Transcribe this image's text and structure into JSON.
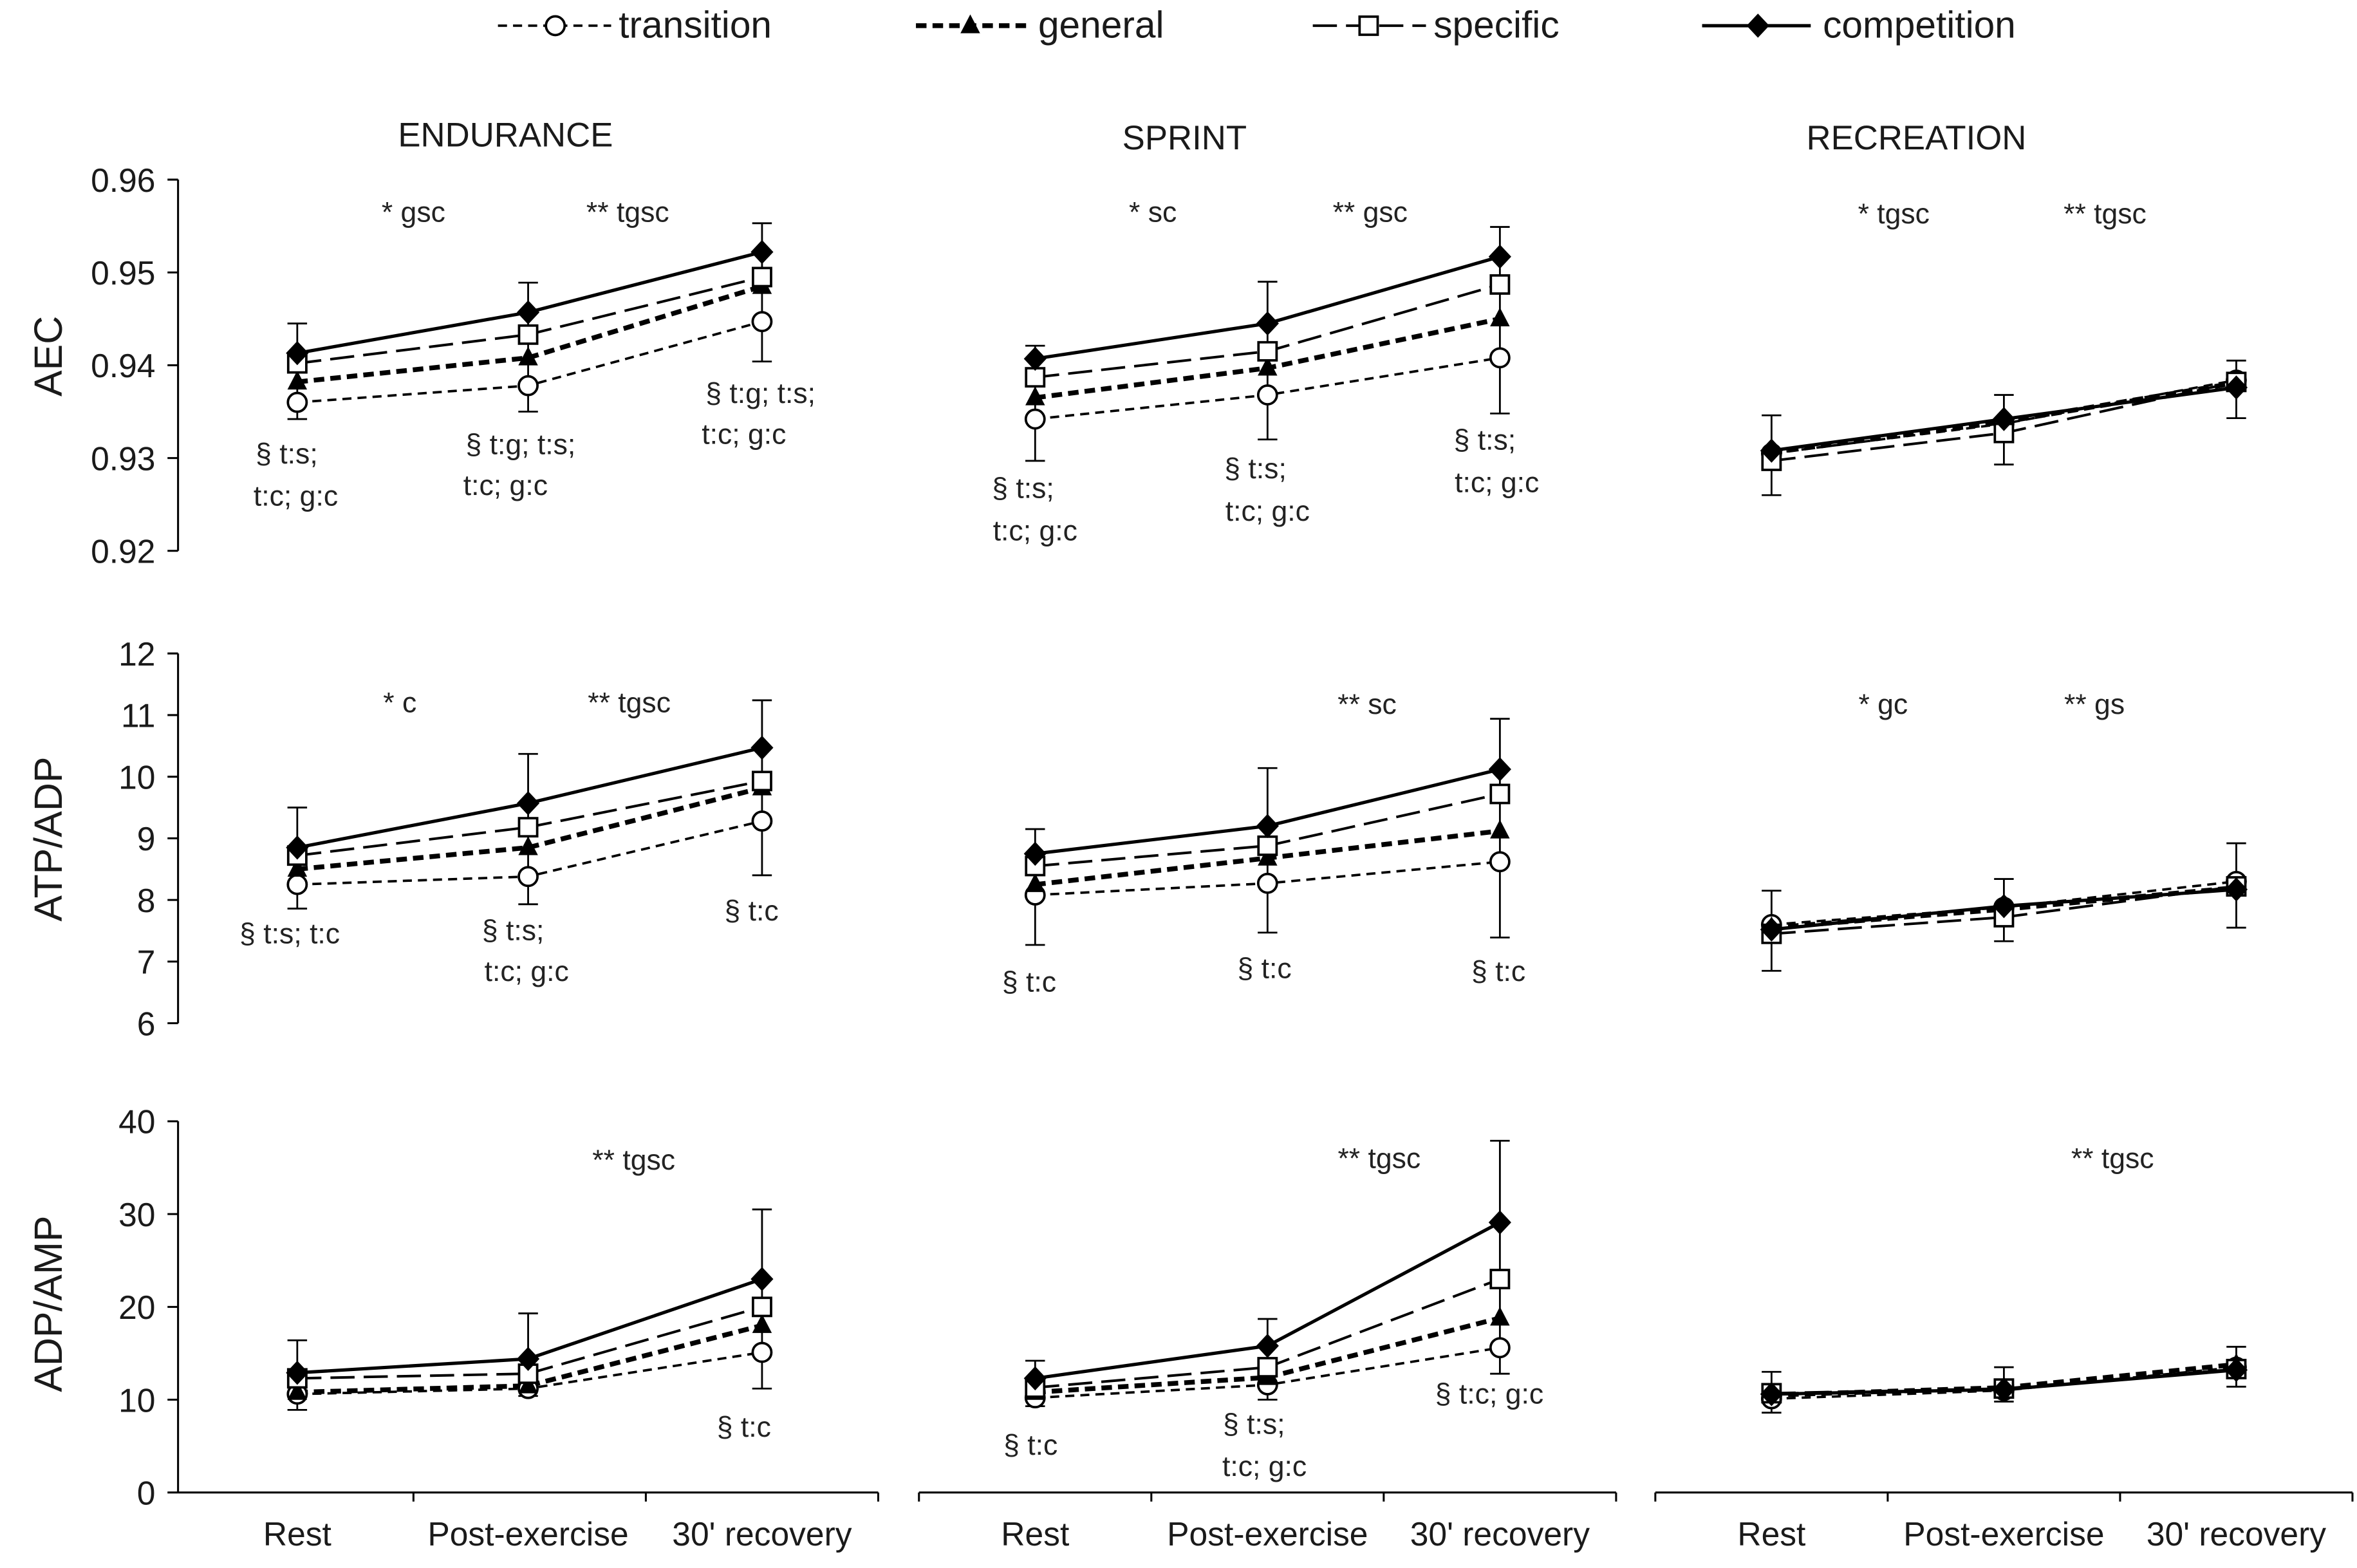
{
  "chart_data": {
    "type": "line",
    "legend": [
      "transition",
      "general",
      "specific",
      "competition"
    ],
    "columns": [
      "ENDURANCE",
      "SPRINT",
      "RECREATION"
    ],
    "categories": [
      "Rest",
      "Post-exercise",
      "30' recovery"
    ],
    "rows": [
      {
        "ylabel": "AEC",
        "ylim": [
          0.92,
          0.96
        ],
        "yticks": [
          "0.96",
          "0.95",
          "0.94",
          "0.93",
          "0.92"
        ]
      },
      {
        "ylabel": "ATP/ADP",
        "ylim": [
          6,
          12
        ],
        "yticks": [
          "12",
          "11",
          "10",
          "9",
          "8",
          "7",
          "6"
        ]
      },
      {
        "ylabel": "ADP/AMP",
        "ylim": [
          0,
          40
        ],
        "yticks": [
          "40",
          "30",
          "20",
          "10",
          "0"
        ]
      }
    ],
    "panels": [
      {
        "series": {
          "transition": [
            0.936,
            0.9378,
            0.9447
          ],
          "general": [
            0.9382,
            0.9408,
            0.9485
          ],
          "specific": [
            0.9402,
            0.9433,
            0.9495
          ],
          "competition": [
            0.9413,
            0.9457,
            0.9522
          ]
        },
        "error_bars": {
          "upper": [
            0.9445,
            0.9489,
            0.9553
          ],
          "lower": [
            0.9342,
            0.935,
            0.9404
          ]
        },
        "annotations": [
          "* gsc",
          "** tgsc",
          "§ t:s;",
          "t:c; g:c",
          "§ t:g; t:s;",
          "t:c; g:c",
          "§ t:g; t:s;",
          "t:c; g:c"
        ]
      },
      {
        "series": {
          "transition": [
            0.9342,
            0.9368,
            0.9408
          ],
          "general": [
            0.9365,
            0.9397,
            0.945
          ],
          "specific": [
            0.9387,
            0.9415,
            0.9487
          ],
          "competition": [
            0.9407,
            0.9445,
            0.9517
          ]
        },
        "error_bars": {
          "upper": [
            0.9421,
            0.949,
            0.9549
          ],
          "lower": [
            0.9297,
            0.932,
            0.9348
          ]
        },
        "annotations": [
          "* sc",
          "** gsc",
          "§ t:s;",
          "t:c; g:c",
          "§ t:s;",
          "t:c; g:c",
          "§ t:s;",
          "t:c; g:c"
        ]
      },
      {
        "series": {
          "transition": [
            0.9305,
            0.9337,
            0.9384
          ],
          "general": [
            0.9306,
            0.9339,
            0.9381
          ],
          "specific": [
            0.9297,
            0.9327,
            0.9382
          ],
          "competition": [
            0.9308,
            0.9342,
            0.9376
          ]
        },
        "error_bars": {
          "upper": [
            0.9346,
            0.9368,
            0.9405
          ],
          "lower": [
            0.926,
            0.9293,
            0.9343
          ]
        },
        "annotations": [
          "* tgsc",
          "** tgsc"
        ]
      },
      {
        "series": {
          "transition": [
            8.25,
            8.38,
            9.28
          ],
          "general": [
            8.5,
            8.85,
            9.82
          ],
          "specific": [
            8.72,
            9.18,
            9.93
          ],
          "competition": [
            8.85,
            9.57,
            10.47
          ]
        },
        "error_bars": {
          "upper": [
            9.5,
            10.37,
            11.24
          ],
          "lower": [
            7.86,
            7.93,
            8.4
          ]
        },
        "annotations": [
          "* c",
          "** tgsc",
          "§ t:s; t:c",
          "§ t:s;",
          "t:c; g:c",
          "§ t:c"
        ]
      },
      {
        "series": {
          "transition": [
            8.08,
            8.27,
            8.62
          ],
          "general": [
            8.25,
            8.68,
            9.12
          ],
          "specific": [
            8.55,
            8.88,
            9.72
          ],
          "competition": [
            8.75,
            9.2,
            10.12
          ]
        },
        "error_bars": {
          "upper": [
            9.15,
            10.14,
            10.94
          ],
          "lower": [
            7.27,
            7.47,
            7.39
          ]
        },
        "annotations": [
          "** sc",
          "§ t:c",
          "§ t:c",
          "§ t:c"
        ]
      },
      {
        "series": {
          "transition": [
            7.6,
            7.88,
            8.3
          ],
          "general": [
            7.55,
            7.85,
            8.2
          ],
          "specific": [
            7.45,
            7.72,
            8.22
          ],
          "competition": [
            7.52,
            7.9,
            8.17
          ]
        },
        "error_bars": {
          "upper": [
            8.15,
            8.34,
            8.92
          ],
          "lower": [
            6.85,
            7.33,
            7.55
          ]
        },
        "annotations": [
          "* gc",
          "** gs"
        ]
      },
      {
        "series": {
          "transition": [
            10.6,
            11.2,
            15.1
          ],
          "general": [
            10.8,
            11.5,
            18.0
          ],
          "specific": [
            12.3,
            12.8,
            20.0
          ],
          "competition": [
            12.9,
            14.4,
            23.0
          ]
        },
        "error_bars": {
          "upper": [
            16.4,
            19.3,
            30.5
          ],
          "lower": [
            8.9,
            10.4,
            11.2
          ]
        },
        "annotations": [
          "** tgsc",
          "§ t:c"
        ]
      },
      {
        "series": {
          "transition": [
            10.2,
            11.6,
            15.6
          ],
          "general": [
            10.8,
            12.4,
            18.8
          ],
          "specific": [
            11.3,
            13.5,
            23.0
          ],
          "competition": [
            12.3,
            15.8,
            29.1
          ]
        },
        "error_bars": {
          "upper": [
            14.2,
            18.7,
            37.9
          ],
          "lower": [
            9.3,
            10.0,
            12.8
          ]
        },
        "annotations": [
          "** tgsc",
          "§ t:c",
          "§ t:s;",
          "t:c; g:c",
          "§ t:c; g:c"
        ]
      },
      {
        "series": {
          "transition": [
            10.1,
            11.0,
            13.5
          ],
          "general": [
            10.5,
            11.3,
            13.8
          ],
          "specific": [
            10.7,
            11.2,
            13.3
          ],
          "competition": [
            10.6,
            11.1,
            13.2
          ]
        },
        "error_bars": {
          "upper": [
            13.0,
            13.5,
            15.7
          ],
          "lower": [
            8.6,
            9.8,
            11.4
          ]
        },
        "annotations": [
          "** tgsc"
        ]
      }
    ]
  }
}
